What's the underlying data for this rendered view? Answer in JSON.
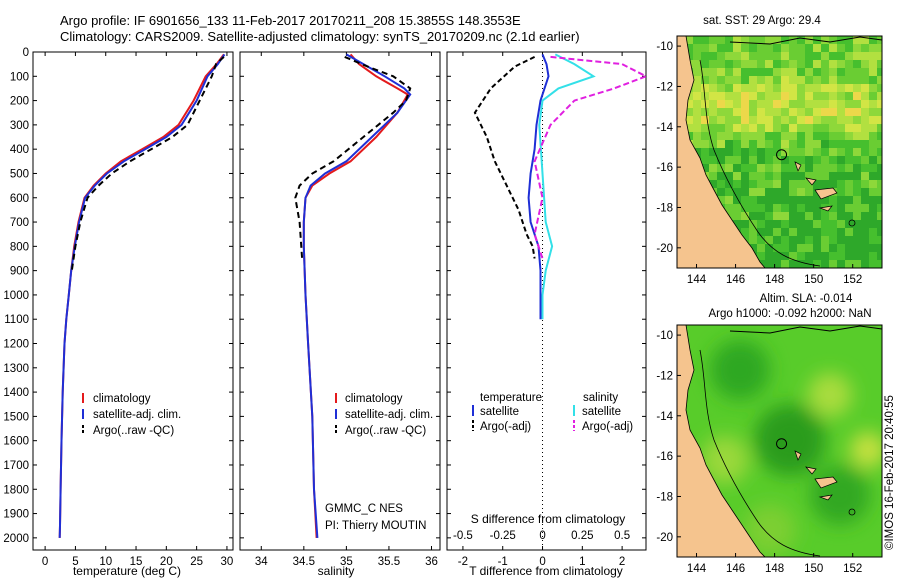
{
  "header": {
    "title_line1": "Argo profile: IF 6901656_133 11-Feb-2017 20170211_208 15.3855S 148.3553E",
    "title_line2": "Climatology: CARS2009. Satellite-adjusted climatology: synTS_20170209.nc (2.1d earlier)"
  },
  "side_label": "©IMOS 16-Feb-2017 20:40:55",
  "colors": {
    "climatology": "#e41a1c",
    "satellite": "#1f2fd6",
    "argo": "#000000",
    "sal_satellite": "#33e0e8",
    "sal_argo": "#e020e0",
    "land": "#f5c48e",
    "ocean": "#3cbc30"
  },
  "chart_data": [
    {
      "type": "line",
      "name": "temperature_profile",
      "xlabel": "temperature (deg C)",
      "ylabel": "",
      "xlim": [
        -2,
        31
      ],
      "ylim": [
        2050,
        0
      ],
      "xticks": [
        0,
        5,
        10,
        15,
        20,
        25,
        30
      ],
      "yticks": [
        0,
        100,
        200,
        300,
        400,
        500,
        600,
        700,
        800,
        900,
        1000,
        1100,
        1200,
        1300,
        1400,
        1500,
        1600,
        1700,
        1800,
        1900,
        2000
      ],
      "legend": [
        "climatology",
        "satellite-adj. clim.",
        "Argo(..raw -QC)"
      ],
      "series": [
        {
          "name": "climatology",
          "x": [
            29.5,
            28.3,
            26.5,
            24.5,
            22,
            19.5,
            16,
            12.5,
            10,
            8,
            6.5,
            5.5,
            4.8,
            4.3,
            3.9,
            3.5,
            3.2,
            2.9,
            2.7,
            2.55,
            2.45,
            2.4
          ],
          "y": [
            10,
            50,
            100,
            200,
            300,
            350,
            400,
            450,
            500,
            550,
            600,
            700,
            800,
            900,
            1000,
            1100,
            1200,
            1400,
            1600,
            1800,
            1950,
            2000
          ]
        },
        {
          "name": "satellite-adj. clim.",
          "x": [
            29.6,
            28.5,
            26.8,
            25,
            22.5,
            20,
            16.5,
            13,
            10.2,
            8.2,
            6.6,
            5.6,
            4.9,
            4.3,
            3.9,
            3.5,
            3.2,
            2.9,
            2.7,
            2.55,
            2.45,
            2.4
          ],
          "y": [
            10,
            50,
            100,
            200,
            300,
            350,
            400,
            450,
            500,
            550,
            600,
            700,
            800,
            900,
            1000,
            1100,
            1200,
            1400,
            1600,
            1800,
            1950,
            2000
          ]
        },
        {
          "name": "Argo(..raw -QC)",
          "x": [
            29.5,
            28.2,
            27.5,
            25.5,
            23.5,
            21,
            17.5,
            14,
            11,
            8.8,
            7,
            5.8,
            5,
            4.4
          ],
          "y": [
            20,
            50,
            100,
            200,
            300,
            350,
            400,
            450,
            500,
            550,
            600,
            700,
            800,
            900
          ]
        }
      ]
    },
    {
      "type": "line",
      "name": "salinity_profile",
      "xlabel": "salinity",
      "ylabel": "",
      "xlim": [
        33.75,
        36.1
      ],
      "ylim": [
        2050,
        0
      ],
      "xticks": [
        34,
        34.5,
        35,
        35.5,
        36
      ],
      "legend": [
        "climatology",
        "satellite-adj. clim.",
        "Argo(..raw -QC)"
      ],
      "credits": [
        "GMMC_C NES",
        "PI: Thierry MOUTIN"
      ],
      "series": [
        {
          "name": "climatology",
          "x": [
            35.05,
            35.15,
            35.35,
            35.6,
            35.72,
            35.6,
            35.35,
            35.05,
            34.8,
            34.6,
            34.52,
            34.5,
            34.5,
            34.52,
            34.55,
            34.6,
            34.62,
            34.65
          ],
          "y": [
            10,
            50,
            100,
            150,
            175,
            250,
            350,
            450,
            500,
            550,
            600,
            700,
            800,
            1000,
            1200,
            1500,
            1800,
            2000
          ]
        },
        {
          "name": "satellite-adj. clim.",
          "x": [
            35.0,
            35.2,
            35.45,
            35.68,
            35.75,
            35.6,
            35.3,
            35.0,
            34.75,
            34.58,
            34.52,
            34.5,
            34.5,
            34.52,
            34.55,
            34.6,
            34.62,
            34.66
          ],
          "y": [
            10,
            50,
            100,
            150,
            175,
            250,
            350,
            450,
            500,
            550,
            600,
            700,
            800,
            1000,
            1200,
            1500,
            1800,
            2000
          ]
        },
        {
          "name": "Argo(..raw -QC)",
          "x": [
            34.98,
            35.25,
            35.55,
            35.75,
            35.7,
            35.55,
            35.2,
            34.85,
            34.6,
            34.45,
            34.4,
            34.45,
            34.48
          ],
          "y": [
            20,
            60,
            100,
            150,
            200,
            250,
            350,
            450,
            500,
            550,
            600,
            700,
            850
          ]
        }
      ]
    },
    {
      "type": "line",
      "name": "difference_profile",
      "xlabel": "T difference from climatology",
      "top_label": "S difference from climatology",
      "xlim": [
        -2.4,
        2.6
      ],
      "ylim": [
        2050,
        0
      ],
      "xticks": [
        -2,
        -1,
        0,
        1,
        2
      ],
      "top_ticks": [
        "-0.5",
        "-0.25",
        "0",
        "0.25",
        "0.5"
      ],
      "top_tick_values": [
        -0.5,
        -0.25,
        0,
        0.25,
        0.5
      ],
      "legend_groups": [
        {
          "title": "temperature",
          "items": [
            "satellite",
            "Argo(-adj)"
          ]
        },
        {
          "title": "salinity",
          "items": [
            "satellite",
            "Argo(-adj)"
          ]
        }
      ],
      "series": [
        {
          "name": "temperature satellite",
          "unit": "T",
          "x": [
            0,
            0.1,
            0.15,
            -0.05,
            -0.15,
            -0.2,
            -0.3,
            -0.35,
            -0.3,
            -0.1,
            -0.05,
            -0.05,
            -0.05
          ],
          "y": [
            10,
            50,
            100,
            200,
            300,
            400,
            500,
            600,
            700,
            800,
            900,
            1000,
            1100
          ]
        },
        {
          "name": "temperature Argo(-adj)",
          "unit": "T",
          "x": [
            -0.2,
            -0.7,
            -1.3,
            -1.7,
            -1.4,
            -1.2,
            -0.9,
            -0.6,
            -0.4,
            -0.25,
            -0.2
          ],
          "y": [
            20,
            60,
            150,
            250,
            350,
            450,
            550,
            650,
            750,
            800,
            850
          ]
        },
        {
          "name": "salinity satellite",
          "unit": "S",
          "x": [
            0.08,
            0.2,
            0.32,
            0.1,
            0.0,
            -0.02,
            0.0,
            0.02,
            0.06,
            0.02,
            0.0,
            0.0
          ],
          "y": [
            10,
            50,
            100,
            150,
            200,
            300,
            500,
            700,
            800,
            900,
            1000,
            1100
          ]
        },
        {
          "name": "salinity Argo(-adj)",
          "unit": "S",
          "x": [
            0.05,
            0.5,
            0.65,
            0.45,
            0.2,
            0.05,
            -0.05,
            0.0,
            -0.05,
            0.0
          ],
          "y": [
            20,
            50,
            100,
            150,
            200,
            300,
            450,
            600,
            750,
            850
          ]
        }
      ]
    },
    {
      "type": "heatmap",
      "name": "sst_map",
      "title": "sat. SST: 29 Argo: 29.4",
      "xlim": [
        143,
        153.5
      ],
      "ylim": [
        -21,
        -9.5
      ],
      "xticks": [
        144,
        146,
        148,
        150,
        152
      ],
      "yticks": [
        -10,
        -12,
        -14,
        -16,
        -18,
        -20
      ],
      "argo_position": [
        148.3553,
        -15.3855
      ]
    },
    {
      "type": "heatmap",
      "name": "sla_map",
      "title_line1": "Altim. SLA: -0.014",
      "title_line2": "Argo h1000: -0.092 h2000: NaN",
      "xlim": [
        143,
        153.5
      ],
      "ylim": [
        -21,
        -9.5
      ],
      "xticks": [
        144,
        146,
        148,
        150,
        152
      ],
      "yticks": [
        -10,
        -12,
        -14,
        -16,
        -18,
        -20
      ],
      "argo_position": [
        148.3553,
        -15.3855
      ]
    }
  ]
}
